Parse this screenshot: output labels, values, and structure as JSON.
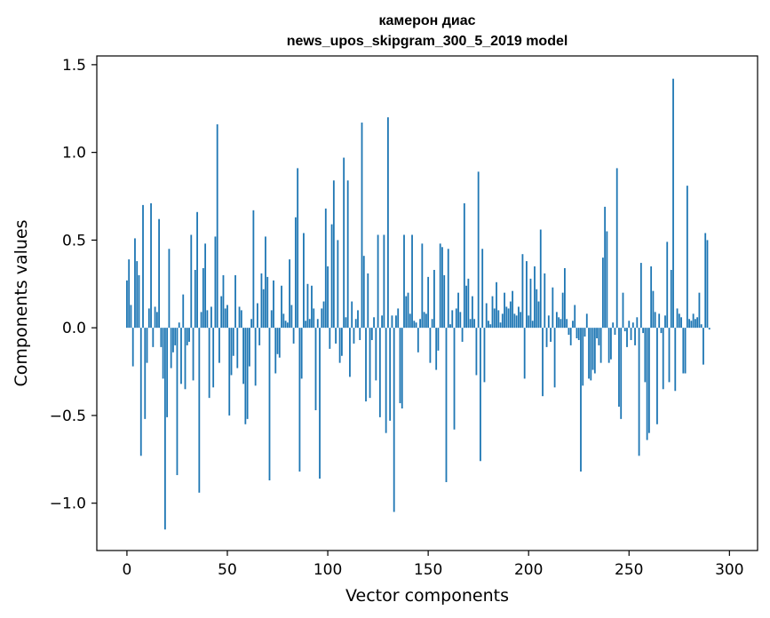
{
  "chart_data": {
    "type": "bar",
    "title_line1": "камерон диас",
    "title_line2": "news_upos_skipgram_300_5_2019 model",
    "xlabel": "Vector components",
    "ylabel": "Components values",
    "xlim": [
      -15,
      314
    ],
    "ylim": [
      -1.27,
      1.55
    ],
    "xticks": [
      0,
      50,
      100,
      150,
      200,
      250,
      300
    ],
    "yticks": [
      -1.0,
      -0.5,
      0.0,
      0.5,
      1.0,
      1.5
    ],
    "ytick_labels": [
      "−1.0",
      "−0.5",
      "0.0",
      "0.5",
      "1.0",
      "1.5"
    ],
    "bar_color": "#1f77b4",
    "grid": false,
    "legend": false,
    "values": [
      0.27,
      0.39,
      0.13,
      -0.22,
      0.51,
      0.38,
      0.3,
      -0.73,
      0.7,
      -0.52,
      -0.2,
      0.11,
      0.71,
      -0.11,
      0.12,
      0.09,
      0.62,
      -0.11,
      -0.29,
      -1.15,
      -0.51,
      0.45,
      -0.23,
      -0.14,
      -0.1,
      -0.84,
      0.03,
      -0.32,
      0.19,
      -0.35,
      -0.1,
      -0.08,
      0.53,
      -0.3,
      0.33,
      0.66,
      -0.94,
      0.09,
      0.34,
      0.48,
      0.1,
      -0.4,
      0.12,
      -0.34,
      0.52,
      1.16,
      -0.2,
      0.18,
      0.3,
      0.11,
      0.13,
      -0.5,
      -0.27,
      -0.16,
      0.3,
      -0.23,
      0.12,
      0.1,
      -0.32,
      -0.55,
      -0.52,
      -0.22,
      0.05,
      0.67,
      -0.33,
      0.14,
      -0.1,
      0.31,
      0.22,
      0.52,
      0.29,
      -0.87,
      0.1,
      0.27,
      -0.26,
      -0.15,
      -0.17,
      0.24,
      0.08,
      0.04,
      0.03,
      0.39,
      0.13,
      -0.09,
      0.63,
      0.91,
      -0.82,
      -0.29,
      0.54,
      0.04,
      0.25,
      0.05,
      0.24,
      0.11,
      -0.47,
      0.05,
      -0.86,
      0.11,
      0.15,
      0.68,
      0.35,
      -0.12,
      0.59,
      0.84,
      -0.09,
      0.5,
      -0.2,
      -0.16,
      0.97,
      0.06,
      0.84,
      -0.28,
      0.15,
      -0.09,
      0.05,
      0.1,
      -0.07,
      1.17,
      0.41,
      -0.42,
      0.31,
      -0.4,
      -0.07,
      0.06,
      -0.3,
      0.53,
      -0.51,
      0.07,
      0.53,
      -0.6,
      1.2,
      -0.53,
      0.07,
      -1.05,
      0.07,
      0.11,
      -0.43,
      -0.46,
      0.53,
      0.18,
      0.2,
      0.08,
      0.53,
      0.04,
      0.03,
      -0.14,
      0.05,
      0.48,
      0.09,
      0.08,
      0.29,
      -0.2,
      0.05,
      0.33,
      -0.24,
      -0.13,
      0.48,
      0.46,
      0.3,
      -0.88,
      0.45,
      0.02,
      0.1,
      -0.58,
      0.11,
      0.2,
      0.09,
      -0.08,
      0.71,
      0.24,
      0.28,
      0.05,
      0.18,
      0.05,
      -0.27,
      0.89,
      -0.76,
      0.45,
      -0.31,
      0.14,
      0.04,
      0.02,
      0.18,
      0.11,
      0.26,
      0.1,
      0.03,
      0.08,
      0.2,
      0.12,
      0.11,
      0.15,
      0.21,
      0.08,
      0.07,
      0.12,
      0.09,
      0.42,
      -0.29,
      0.38,
      0.07,
      0.28,
      0.04,
      0.35,
      0.22,
      0.15,
      0.56,
      -0.39,
      0.31,
      -0.11,
      0.07,
      -0.08,
      0.23,
      -0.34,
      0.09,
      0.06,
      0.05,
      0.2,
      0.34,
      0.05,
      -0.04,
      -0.1,
      0.04,
      0.13,
      -0.06,
      -0.07,
      -0.82,
      -0.33,
      -0.05,
      0.08,
      -0.29,
      -0.3,
      -0.24,
      -0.26,
      -0.06,
      -0.1,
      -0.2,
      0.4,
      0.69,
      0.55,
      -0.2,
      -0.18,
      0.03,
      -0.04,
      0.91,
      -0.45,
      -0.52,
      0.2,
      -0.02,
      -0.11,
      0.04,
      -0.07,
      0.03,
      -0.1,
      0.06,
      -0.73,
      0.37,
      -0.03,
      -0.31,
      -0.64,
      -0.6,
      0.35,
      0.21,
      0.09,
      -0.55,
      0.08,
      -0.03,
      -0.35,
      0.07,
      0.49,
      -0.31,
      0.33,
      1.42,
      -0.36,
      0.11,
      0.08,
      0.06,
      -0.26,
      -0.26,
      0.81,
      0.05,
      0.04,
      0.08,
      0.05,
      0.06,
      0.2,
      0.02,
      -0.21,
      0.54,
      0.5,
      -0.01
    ]
  }
}
